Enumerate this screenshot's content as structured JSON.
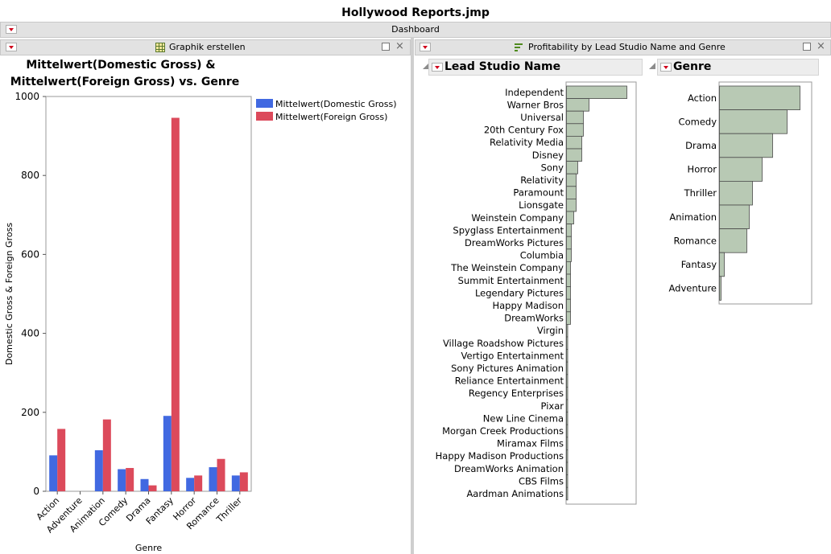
{
  "window": {
    "title": "Hollywood Reports.jmp"
  },
  "dashboard": {
    "label": "Dashboard"
  },
  "left_panel": {
    "title": "Graphik erstellen",
    "chart_title_line1": "Mittelwert(Domestic Gross) &",
    "chart_title_line2": "Mittelwert(Foreign Gross) vs. Genre"
  },
  "right_panel": {
    "title": "Profitability by Lead Studio Name and Genre",
    "studio_header": "Lead Studio Name",
    "genre_header": "Genre"
  },
  "colors": {
    "domestic": "#4169e1",
    "foreign": "#dc4a5b",
    "bar_fill": "#b8c9b4",
    "bar_stroke": "#4a4a4a"
  },
  "chart_data": [
    {
      "type": "bar",
      "title": "Mittelwert(Domestic Gross) & Mittelwert(Foreign Gross) vs. Genre",
      "xlabel": "Genre",
      "ylabel": "Domestic Gross & Foreign Gross",
      "ylim": [
        0,
        1000
      ],
      "yticks": [
        0,
        200,
        400,
        600,
        800,
        1000
      ],
      "grid": false,
      "legend": "right",
      "categories": [
        "Action",
        "Adventure",
        "Animation",
        "Comedy",
        "Drama",
        "Fantasy",
        "Horror",
        "Romance",
        "Thriller"
      ],
      "series": [
        {
          "name": "Mittelwert(Domestic Gross)",
          "values": [
            91,
            0,
            104,
            56,
            31,
            191,
            34,
            61,
            40
          ]
        },
        {
          "name": "Mittelwert(Foreign Gross)",
          "values": [
            158,
            0,
            182,
            59,
            15,
            946,
            40,
            82,
            48
          ]
        }
      ]
    },
    {
      "type": "bar",
      "orientation": "horizontal",
      "title": "Lead Studio Name",
      "categories": [
        "Independent",
        "Warner Bros",
        "Universal",
        "20th Century Fox",
        "Relativity Media",
        "Disney",
        "Sony",
        "Relativity",
        "Paramount",
        "Lionsgate",
        "Weinstein Company",
        "Spyglass Entertainment",
        "DreamWorks Pictures",
        "Columbia",
        "The Weinstein Company",
        "Summit Entertainment",
        "Legendary Pictures",
        "Happy Madison",
        "DreamWorks",
        "Virgin",
        "Village Roadshow Pictures",
        "Vertigo Entertainment",
        "Sony Pictures Animation",
        "Reliance Entertainment",
        "Regency Enterprises",
        "Pixar",
        "New Line Cinema",
        "Morgan Creek Productions",
        "Miramax Films",
        "Happy Madison Productions",
        "DreamWorks Animation",
        "CBS Films",
        "Aardman Animations"
      ],
      "values": [
        75,
        28,
        21,
        21,
        19,
        19,
        14,
        12,
        12,
        12,
        9,
        6,
        6,
        6,
        5,
        5,
        5,
        5,
        5,
        1,
        1,
        1,
        1,
        1,
        1,
        1,
        1,
        1,
        1,
        1,
        1,
        1,
        1
      ]
    },
    {
      "type": "bar",
      "orientation": "horizontal",
      "title": "Genre",
      "categories": [
        "Action",
        "Comedy",
        "Drama",
        "Horror",
        "Thriller",
        "Animation",
        "Romance",
        "Fantasy",
        "Adventure"
      ],
      "values": [
        100,
        84,
        66,
        53,
        41,
        37,
        34,
        6,
        2
      ]
    }
  ]
}
